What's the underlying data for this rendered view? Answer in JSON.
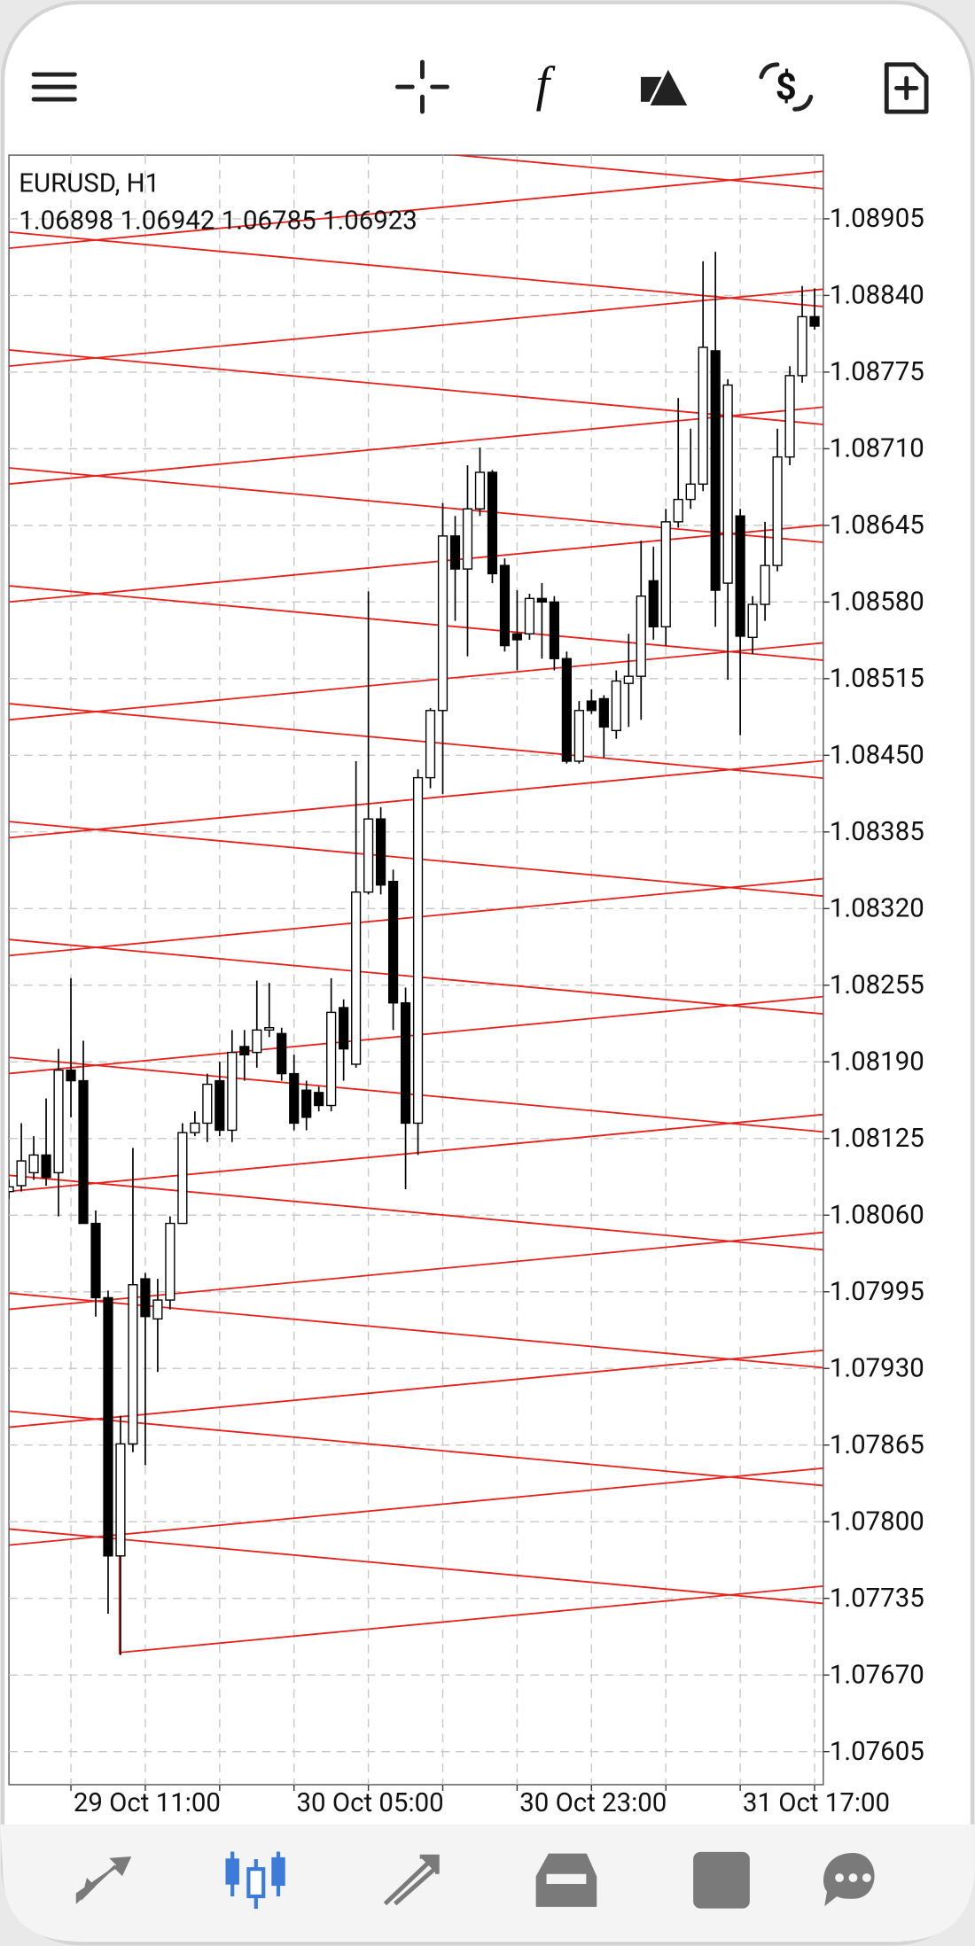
{
  "chart_data": {
    "type": "candlestick",
    "title": "EURUSD, H1",
    "subtitle": "1.06898 1.06942 1.06785 1.06923",
    "categories": [
      null,
      null,
      null,
      null,
      null,
      "29 Oct 11:00",
      null,
      null,
      null,
      null,
      null,
      null,
      null,
      null,
      null,
      null,
      null,
      null,
      null,
      null,
      null,
      null,
      null,
      "30 Oct 05:00",
      null,
      null,
      null,
      null,
      null,
      null,
      null,
      null,
      null,
      null,
      null,
      null,
      null,
      null,
      null,
      null,
      null,
      "30 Oct 23:00",
      null,
      null,
      null,
      null,
      null,
      null,
      null,
      null,
      null,
      null,
      null,
      null,
      null,
      null,
      null,
      null,
      null,
      "31 Oct 17:00",
      null,
      null,
      null,
      null,
      null,
      null
    ],
    "open": [
      1.0808,
      1.08085,
      1.08096,
      1.08111,
      1.08096,
      1.08183,
      1.08174,
      1.08053,
      1.0799,
      1.07771,
      1.07866,
      1.08006,
      1.07972,
      1.07988,
      1.08053,
      1.0813,
      1.08138,
      1.08174,
      1.08132,
      1.08203,
      1.08198,
      1.08217,
      1.08214,
      1.0818,
      1.08166,
      1.08164,
      1.08153,
      1.08236,
      1.08188,
      1.08334,
      1.08396,
      1.08343,
      1.0824,
      1.08138,
      1.08431,
      1.08488,
      1.08636,
      1.08608,
      1.08659,
      1.0869,
      1.08611,
      1.08553,
      1.08553,
      1.08583,
      1.0858,
      1.08532,
      1.08445,
      1.08496,
      1.08498,
      1.08471,
      1.08511,
      1.08517,
      1.08598,
      1.08559,
      1.08648,
      1.08667,
      1.0868,
      1.08793,
      1.08596,
      1.08653,
      1.0855,
      1.08578,
      1.08611,
      1.08703,
      1.08772,
      1.08822
    ],
    "high": [
      1.0809,
      1.08138,
      1.08127,
      1.08159,
      1.08201,
      1.08261,
      1.08208,
      1.08064,
      1.07996,
      1.0789,
      1.08117,
      1.08011,
      1.08006,
      1.08059,
      1.08138,
      1.08148,
      1.0818,
      1.0819,
      1.08217,
      1.08217,
      1.08259,
      1.08257,
      1.08219,
      1.08196,
      1.08174,
      1.08169,
      1.08261,
      1.08243,
      1.08445,
      1.08589,
      1.08406,
      1.08353,
      1.08253,
      1.08438,
      1.0849,
      1.08664,
      1.08653,
      1.08696,
      1.08711,
      1.08692,
      1.08617,
      1.0859,
      1.08587,
      1.08596,
      1.08585,
      1.08538,
      1.08496,
      1.08506,
      1.08501,
      1.08522,
      1.08553,
      1.08632,
      1.08627,
      1.08659,
      1.08753,
      1.08727,
      1.08869,
      1.08877,
      1.08769,
      1.08659,
      1.08585,
      1.08648,
      1.08727,
      1.0878,
      1.08848,
      1.08846
    ],
    "low": [
      1.08074,
      1.0808,
      1.0809,
      1.08085,
      1.08059,
      1.08143,
      1.08053,
      1.07974,
      1.07722,
      1.07687,
      1.07859,
      1.07848,
      1.07927,
      1.0798,
      1.08059,
      1.08127,
      1.08122,
      1.08127,
      1.08122,
      1.08174,
      1.08185,
      1.08211,
      1.08174,
      1.08132,
      1.08132,
      1.08148,
      1.08148,
      1.08174,
      1.08185,
      1.08332,
      1.08332,
      1.08217,
      1.08082,
      1.08111,
      1.08422,
      1.08417,
      1.08564,
      1.08534,
      1.08653,
      1.08596,
      1.08538,
      1.08522,
      1.08548,
      1.08532,
      1.08522,
      1.08443,
      1.08443,
      1.08485,
      1.08448,
      1.08464,
      1.08474,
      1.0848,
      1.08548,
      1.08543,
      1.08643,
      1.08659,
      1.08674,
      1.08559,
      1.08514,
      1.08467,
      1.08536,
      1.08564,
      1.08606,
      1.08696,
      1.08766,
      1.08811
    ],
    "close": [
      1.08084,
      1.08106,
      1.08111,
      1.08092,
      1.08183,
      1.08174,
      1.08053,
      1.0799,
      1.07771,
      1.07866,
      1.08001,
      1.07974,
      1.07988,
      1.08053,
      1.0813,
      1.08138,
      1.08171,
      1.08132,
      1.08198,
      1.08196,
      1.08217,
      1.08219,
      1.0818,
      1.08138,
      1.08143,
      1.08153,
      1.08232,
      1.08201,
      1.08334,
      1.08396,
      1.0834,
      1.0824,
      1.08138,
      1.08431,
      1.08488,
      1.08636,
      1.08608,
      1.08659,
      1.0869,
      1.08604,
      1.08543,
      1.08548,
      1.08583,
      1.0858,
      1.08532,
      1.08445,
      1.08488,
      1.08488,
      1.08474,
      1.08513,
      1.08517,
      1.08585,
      1.08559,
      1.08648,
      1.08667,
      1.0868,
      1.08796,
      1.0859,
      1.08764,
      1.08551,
      1.08578,
      1.08611,
      1.08703,
      1.08772,
      1.08822,
      1.08814
    ],
    "up_color": "#ffffff",
    "down_color": "#000000",
    "wick_color": "#000000",
    "ylim": [
      1.07577,
      1.08959
    ],
    "yticks": [
      1.08905,
      {
        "value": 1.0884,
        "label": "1.08840"
      },
      1.08775,
      {
        "value": 1.0871,
        "label": "1.08710"
      },
      1.08645,
      {
        "value": 1.0858,
        "label": "1.08580"
      },
      1.08515,
      {
        "value": 1.0845,
        "label": "1.08450"
      },
      1.08385,
      {
        "value": 1.0832,
        "label": "1.08320"
      },
      1.08255,
      {
        "value": 1.0819,
        "label": "1.08190"
      },
      1.08125,
      {
        "value": 1.0806,
        "label": "1.08060"
      },
      1.07995,
      {
        "value": 1.0793,
        "label": "1.07930"
      },
      1.07865,
      {
        "value": 1.078,
        "label": "1.07800"
      },
      1.07735,
      {
        "value": 1.0767,
        "label": "1.07670"
      },
      1.07605
    ],
    "grid": true
  }
}
